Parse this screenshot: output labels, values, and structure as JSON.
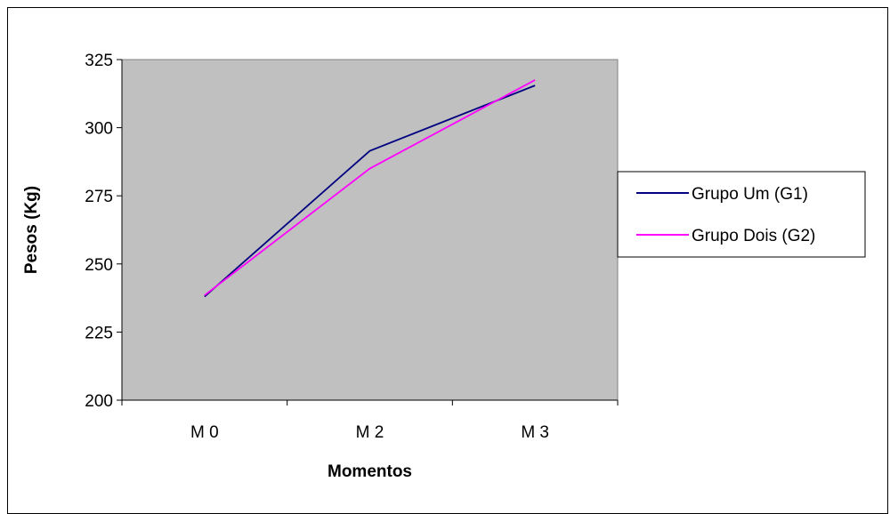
{
  "chart_data": {
    "type": "line",
    "title": "",
    "xlabel": "Momentos",
    "ylabel": "Pesos (Kg)",
    "categories": [
      "M 0",
      "M 2",
      "M 3"
    ],
    "ylim": [
      200,
      325
    ],
    "yticks": [
      200,
      225,
      250,
      275,
      300,
      325
    ],
    "grid": false,
    "plot_background": "#C0C0C0",
    "legend_position": "right",
    "series": [
      {
        "name": "Grupo Um (G1)",
        "color": "#000080",
        "values": [
          238,
          291.5,
          315.5
        ]
      },
      {
        "name": "Grupo Dois (G2)",
        "color": "#FF00FF",
        "values": [
          238.5,
          285,
          317.5
        ]
      }
    ]
  }
}
